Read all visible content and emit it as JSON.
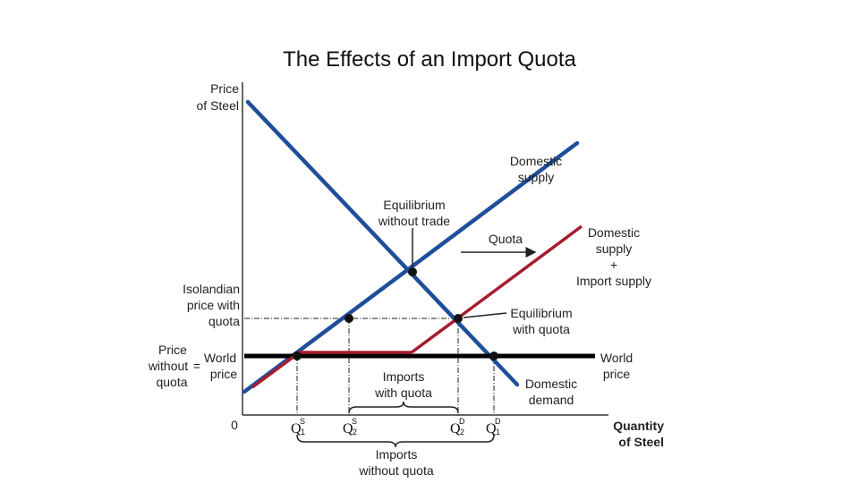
{
  "title": "The Effects of an Import Quota",
  "y_axis_label": [
    "Price",
    "of Steel"
  ],
  "x_axis_label": [
    "Quantity",
    "of Steel"
  ],
  "origin_label": "0",
  "curves": {
    "domestic_supply": [
      "Domestic",
      "supply"
    ],
    "domestic_demand": [
      "Domestic",
      "demand"
    ],
    "quota_supply": [
      "Domestic",
      "supply",
      "+",
      "Import supply"
    ],
    "world_price": [
      "World",
      "price"
    ],
    "quota": "Quota"
  },
  "annotations": {
    "equilibrium_without_trade": [
      "Equilibrium",
      "without trade"
    ],
    "equilibrium_with_quota": [
      "Equilibrium",
      "with quota"
    ],
    "isolandian_price": [
      "Isolandian",
      "price with",
      "quota"
    ],
    "price_without_quota_left": [
      "Price",
      "without",
      "quota"
    ],
    "equals_sign": "=",
    "world_price_left": [
      "World",
      "price"
    ],
    "imports_with_quota": [
      "Imports",
      "with quota"
    ],
    "imports_without_quota": [
      "Imports",
      "without quota"
    ]
  },
  "quantity_ticks": [
    {
      "symbol": "Q",
      "sup": "S",
      "sub": "1"
    },
    {
      "symbol": "Q",
      "sup": "S",
      "sub": "2"
    },
    {
      "symbol": "Q",
      "sup": "D",
      "sub": "2"
    },
    {
      "symbol": "Q",
      "sup": "D",
      "sub": "1"
    }
  ],
  "colors": {
    "supply_demand": "#1f4e9a",
    "quota_supply": "#a61c2e",
    "world_price": "#000000",
    "axis": "#333333"
  }
}
